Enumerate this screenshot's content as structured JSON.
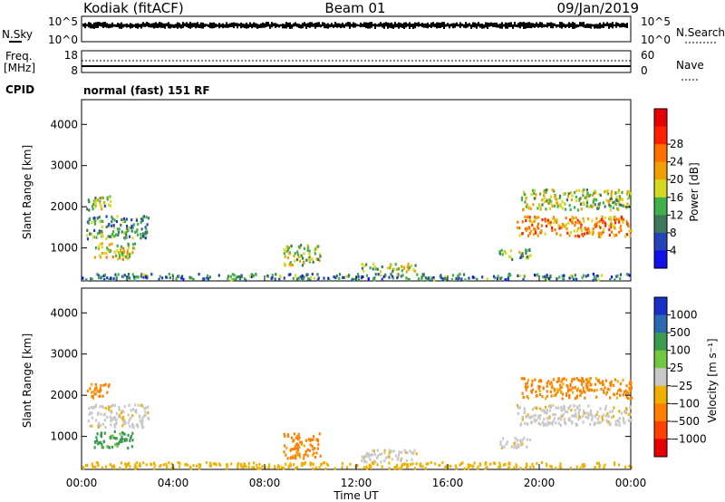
{
  "header": {
    "station": "Kodiak (fitACF)",
    "beam": "Beam 01",
    "date": "09/Jan/2019"
  },
  "strip_labels": {
    "nsky": "N.Sky",
    "nsearch": "N.Search",
    "freq_line1": "Freq.",
    "freq_line2": "[MHz]",
    "nave": "Nave",
    "cpid": "CPID",
    "cpid_value": "normal (fast) 151 RF",
    "nsky_top": "10^5",
    "nsky_bottom": "10^0",
    "nsearch_top": "10^5",
    "nsearch_bottom": "10^0",
    "freq_top": "18",
    "freq_bottom": "8",
    "nave_top": "60",
    "nave_bottom": "0"
  },
  "x_axis": {
    "label": "Time UT",
    "ticks": [
      "00:00",
      "04:00",
      "08:00",
      "12:00",
      "16:00",
      "20:00",
      "00:00"
    ]
  },
  "chart_data": [
    {
      "type": "heatmap",
      "name": "power",
      "ylabel": "Slant Range [km]",
      "xlabel": "Time UT",
      "xlim": [
        0,
        24
      ],
      "ylim": [
        200,
        4600
      ],
      "yticks": [
        "1000",
        "2000",
        "3000",
        "4000"
      ],
      "colorbar": {
        "label": "Power [dB]",
        "ticks": [
          "4",
          "8",
          "12",
          "16",
          "20",
          "24",
          "28"
        ],
        "range": [
          0,
          30
        ],
        "colors": [
          "#1010e8",
          "#2244b8",
          "#3a7a5a",
          "#3fb04a",
          "#d8d820",
          "#f0a000",
          "#ff7000",
          "#ff2000",
          "#e80000"
        ]
      },
      "regions": [
        {
          "t0": 0.2,
          "t1": 1.3,
          "r0": 1950,
          "r1": 2300,
          "level": 12
        },
        {
          "t0": 0.2,
          "t1": 2.9,
          "r0": 1250,
          "r1": 1800,
          "level": 10
        },
        {
          "t0": 0.5,
          "t1": 2.3,
          "r0": 750,
          "r1": 1150,
          "level": 16
        },
        {
          "t0": 8.8,
          "t1": 10.4,
          "r0": 600,
          "r1": 1100,
          "level": 14
        },
        {
          "t0": 12.2,
          "t1": 14.6,
          "r0": 450,
          "r1": 650,
          "level": 14
        },
        {
          "t0": 18.2,
          "t1": 19.6,
          "r0": 750,
          "r1": 1000,
          "level": 12
        },
        {
          "t0": 19.2,
          "t1": 24.0,
          "r0": 1950,
          "r1": 2450,
          "level": 14
        },
        {
          "t0": 19.0,
          "t1": 24.0,
          "r0": 1300,
          "r1": 1800,
          "level": 20
        },
        {
          "t0": 0.0,
          "t1": 24.0,
          "r0": 250,
          "r1": 400,
          "level": 8
        }
      ]
    },
    {
      "type": "heatmap",
      "name": "velocity",
      "ylabel": "Slant Range [km]",
      "xlabel": "Time UT",
      "xlim": [
        0,
        24
      ],
      "ylim": [
        200,
        4600
      ],
      "yticks": [
        "1000",
        "2000",
        "3000",
        "4000"
      ],
      "colorbar": {
        "label": "Velocity [m s⁻¹]",
        "ticks": [
          "1000",
          "500",
          "100",
          "25",
          "−25",
          "−100",
          "−500",
          "−1000"
        ],
        "colors": [
          "#1830c8",
          "#2a6ab0",
          "#3a9a50",
          "#70c840",
          "#c8c8c8",
          "#f0b000",
          "#ff8000",
          "#ff4000",
          "#e80000"
        ]
      },
      "regions": [
        {
          "t0": 0.2,
          "t1": 1.2,
          "r0": 1950,
          "r1": 2300,
          "level": -500
        },
        {
          "t0": 0.2,
          "t1": 2.9,
          "r0": 1250,
          "r1": 1800,
          "level": 0
        },
        {
          "t0": 0.5,
          "t1": 2.3,
          "r0": 750,
          "r1": 1150,
          "level": 100
        },
        {
          "t0": 8.8,
          "t1": 10.4,
          "r0": 500,
          "r1": 1100,
          "level": -500
        },
        {
          "t0": 12.2,
          "t1": 14.6,
          "r0": 400,
          "r1": 700,
          "level": 0
        },
        {
          "t0": 18.2,
          "t1": 19.6,
          "r0": 750,
          "r1": 1000,
          "level": 0
        },
        {
          "t0": 19.2,
          "t1": 24.0,
          "r0": 1950,
          "r1": 2450,
          "level": -500
        },
        {
          "t0": 19.0,
          "t1": 24.0,
          "r0": 1300,
          "r1": 1800,
          "level": 0
        },
        {
          "t0": 0.0,
          "t1": 24.0,
          "r0": 250,
          "r1": 400,
          "level": -100
        }
      ]
    }
  ]
}
